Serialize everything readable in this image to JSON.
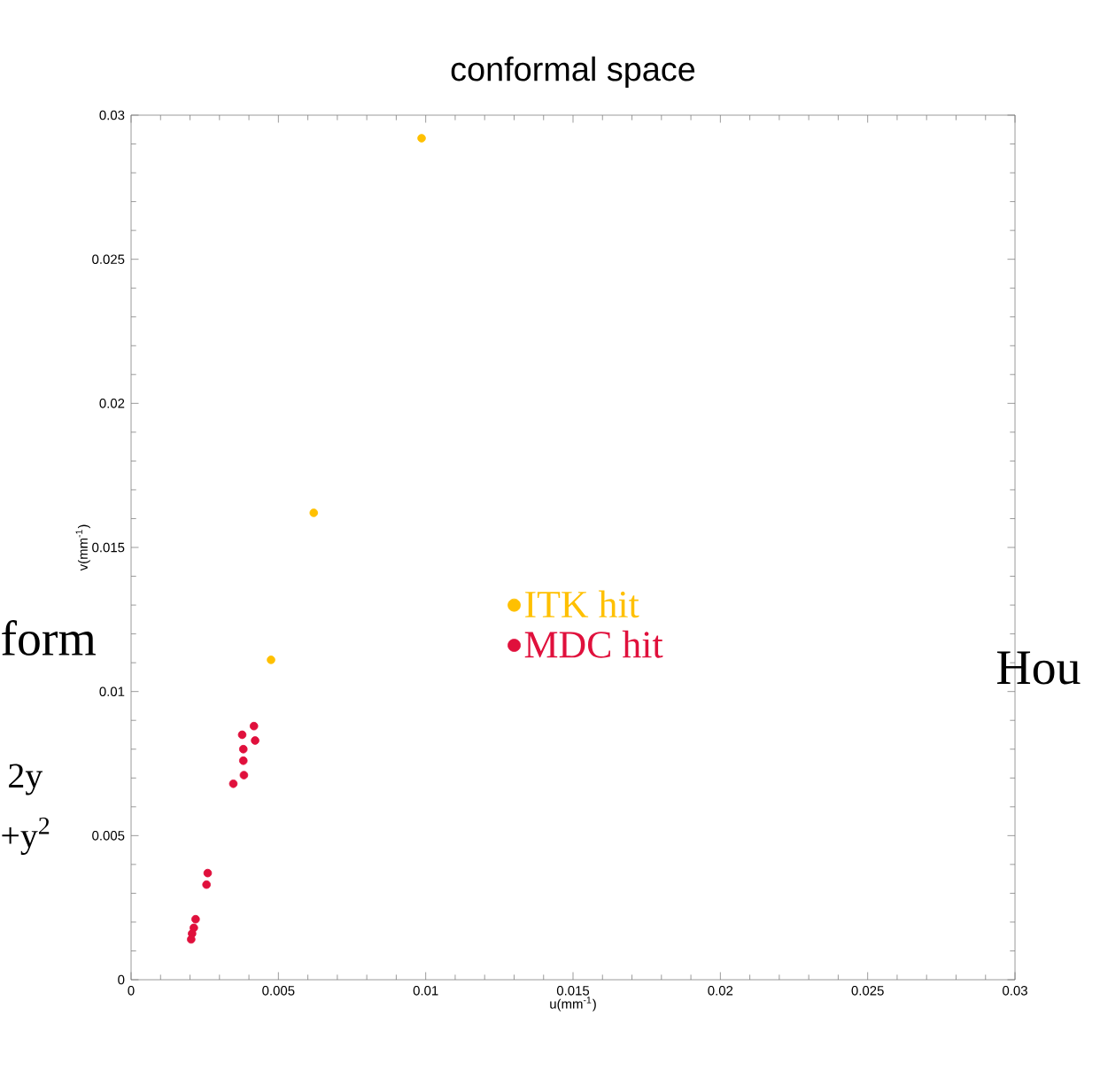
{
  "chart_data": {
    "type": "scatter",
    "title": "conformal space",
    "xlabel": "u(mm$^{-1}$)",
    "ylabel": "v(mm$^{-1}$)",
    "xlim": [
      0,
      0.03
    ],
    "ylim": [
      0,
      0.03
    ],
    "xticks": [
      0,
      0.005,
      0.01,
      0.015,
      0.02,
      0.025,
      0.03
    ],
    "yticks": [
      0,
      0.005,
      0.01,
      0.015,
      0.02,
      0.025,
      0.03
    ],
    "grid": false,
    "legend": "right",
    "series": [
      {
        "name": "ITK hit",
        "color": "#ffc000",
        "x": [
          0.00475,
          0.0062,
          0.00986
        ],
        "values": [
          0.0111,
          0.0162,
          0.0292
        ]
      },
      {
        "name": "MDC hit",
        "color": "#e0103c",
        "x": [
          0.00377,
          0.00421,
          0.00381,
          0.00417,
          0.00381,
          0.00383,
          0.00347,
          0.0026,
          0.00256,
          0.00219,
          0.00213,
          0.00207,
          0.00204
        ],
        "values": [
          0.0085,
          0.0083,
          0.008,
          0.0088,
          0.0076,
          0.0071,
          0.0068,
          0.0037,
          0.0033,
          0.0021,
          0.0018,
          0.0016,
          0.0014
        ]
      }
    ],
    "annotations": [
      "form",
      "2y",
      "+y$^{2}$",
      "Hou"
    ]
  }
}
